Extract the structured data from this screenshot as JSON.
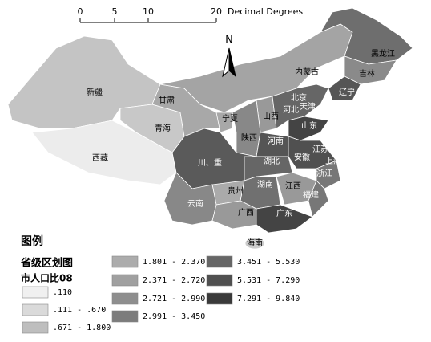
{
  "scale_bar": {
    "ticks": [
      "0",
      "5",
      "10",
      "20"
    ],
    "unit": "Decimal Degrees"
  },
  "north_arrow": "N",
  "provinces": [
    "新疆",
    "西藏",
    "青海",
    "甘肃",
    "宁夏",
    "内蒙古",
    "黑龙江",
    "吉林",
    "辽宁",
    "北京",
    "天津",
    "河北",
    "山西",
    "陕西",
    "山东",
    "河南",
    "江苏",
    "安徽",
    "上海",
    "川、重",
    "湖北",
    "浙江",
    "贵州",
    "湖南",
    "江西",
    "云南",
    "福建",
    "广西",
    "广东",
    "海南"
  ],
  "legend": {
    "title": "图例",
    "layer": "省级区划图",
    "field": "市人口比08",
    "items": [
      {
        "label": ".110",
        "color": "#f0f0f0"
      },
      {
        "label": ".111 - .670",
        "color": "#dadada"
      },
      {
        "label": ".671 - 1.800",
        "color": "#bebebe"
      },
      {
        "label": "1.801 - 2.370",
        "color": "#acacac"
      },
      {
        "label": "2.371 - 2.720",
        "color": "#a0a0a0"
      },
      {
        "label": "2.721 - 2.990",
        "color": "#8e8e8e"
      },
      {
        "label": "2.991 - 3.450",
        "color": "#7c7c7c"
      },
      {
        "label": "3.451 - 5.530",
        "color": "#666666"
      },
      {
        "label": "5.531 - 7.290",
        "color": "#505050"
      },
      {
        "label": "7.291 - 9.840",
        "color": "#3a3a3a"
      }
    ]
  }
}
